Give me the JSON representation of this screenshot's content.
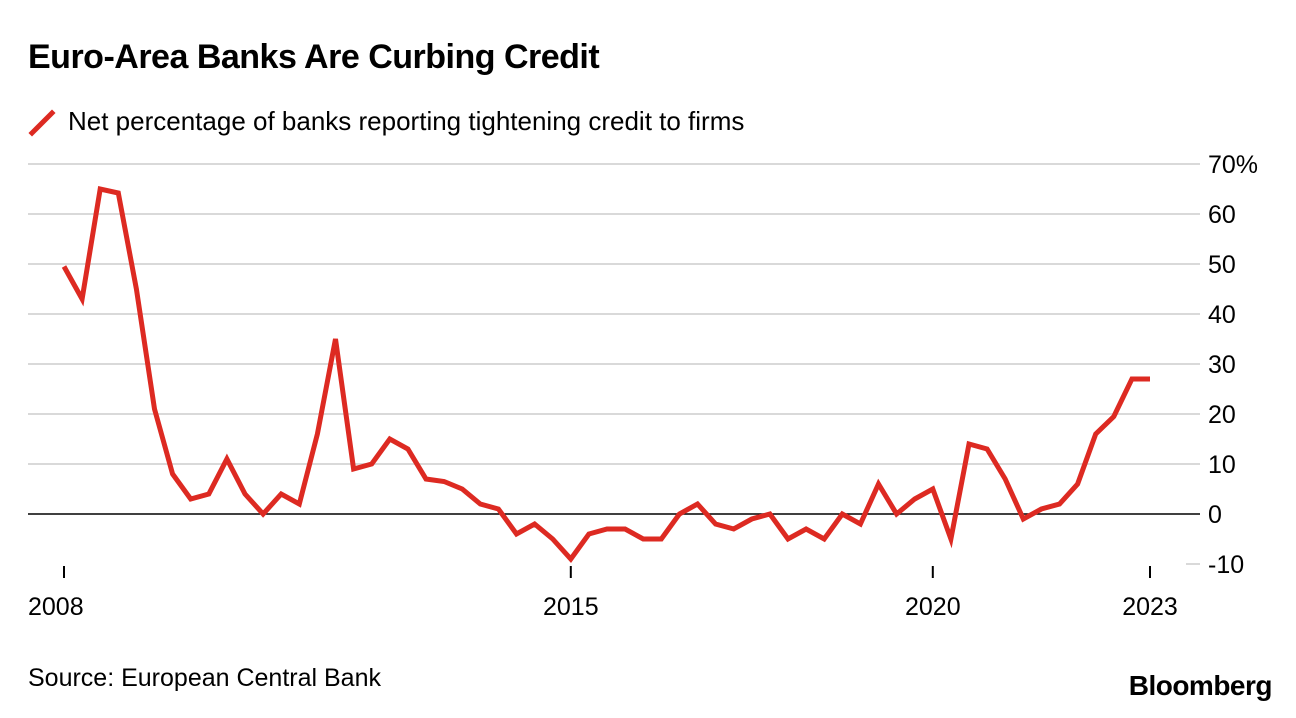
{
  "title": "Euro-Area Banks Are Curbing Credit",
  "source": "Source: European Central Bank",
  "brand": "Bloomberg",
  "colors": {
    "line": "#dd2a22",
    "grid": "#d9d9d9",
    "zero": "#000000"
  },
  "chart_data": {
    "type": "line",
    "title": "Euro-Area Banks Are Curbing Credit",
    "xlabel": "",
    "ylabel": "",
    "ylim": [
      -10,
      70
    ],
    "xlim": [
      2008.0,
      2023.5
    ],
    "y_ticks": [
      70,
      60,
      50,
      40,
      30,
      20,
      10,
      0,
      -10
    ],
    "y_tick_labels": [
      "70%",
      "60",
      "50",
      "40",
      "30",
      "20",
      "10",
      "0",
      "-10"
    ],
    "x_ticks": [
      2008,
      2015,
      2020,
      2023
    ],
    "x_tick_labels": [
      "2008",
      "2015",
      "2020",
      "2023"
    ],
    "grid": true,
    "series": [
      {
        "name": "Net percentage of banks reporting tightening credit to firms",
        "x": [
          2008.0,
          2008.25,
          2008.5,
          2008.75,
          2009.0,
          2009.25,
          2009.5,
          2009.75,
          2010.0,
          2010.25,
          2010.5,
          2010.75,
          2011.0,
          2011.25,
          2011.5,
          2011.75,
          2012.0,
          2012.25,
          2012.5,
          2012.75,
          2013.0,
          2013.25,
          2013.5,
          2013.75,
          2014.0,
          2014.25,
          2014.5,
          2014.75,
          2015.0,
          2015.25,
          2015.5,
          2015.75,
          2016.0,
          2016.25,
          2016.5,
          2016.75,
          2017.0,
          2017.25,
          2017.5,
          2017.75,
          2018.0,
          2018.25,
          2018.5,
          2018.75,
          2019.0,
          2019.25,
          2019.5,
          2019.75,
          2020.0,
          2020.25,
          2020.5,
          2020.75,
          2021.0,
          2021.25,
          2021.5,
          2021.75,
          2022.0,
          2022.25,
          2022.5,
          2022.75,
          2023.0
        ],
        "values": [
          49.5,
          43,
          65,
          64.2,
          45,
          21,
          8,
          3,
          4,
          11,
          4,
          0,
          4,
          2,
          16,
          35,
          9,
          10,
          15,
          13,
          7,
          6.5,
          5,
          2,
          1,
          -4,
          -2,
          -5,
          -9,
          -4,
          -3,
          -3,
          -5,
          -5,
          0,
          2,
          -2,
          -3,
          -1,
          0,
          -5,
          -3,
          -5,
          0,
          -2,
          6,
          0,
          3,
          5,
          -5,
          14,
          13,
          7,
          -1,
          1,
          2,
          6,
          16,
          19.5,
          27,
          27
        ]
      }
    ]
  }
}
